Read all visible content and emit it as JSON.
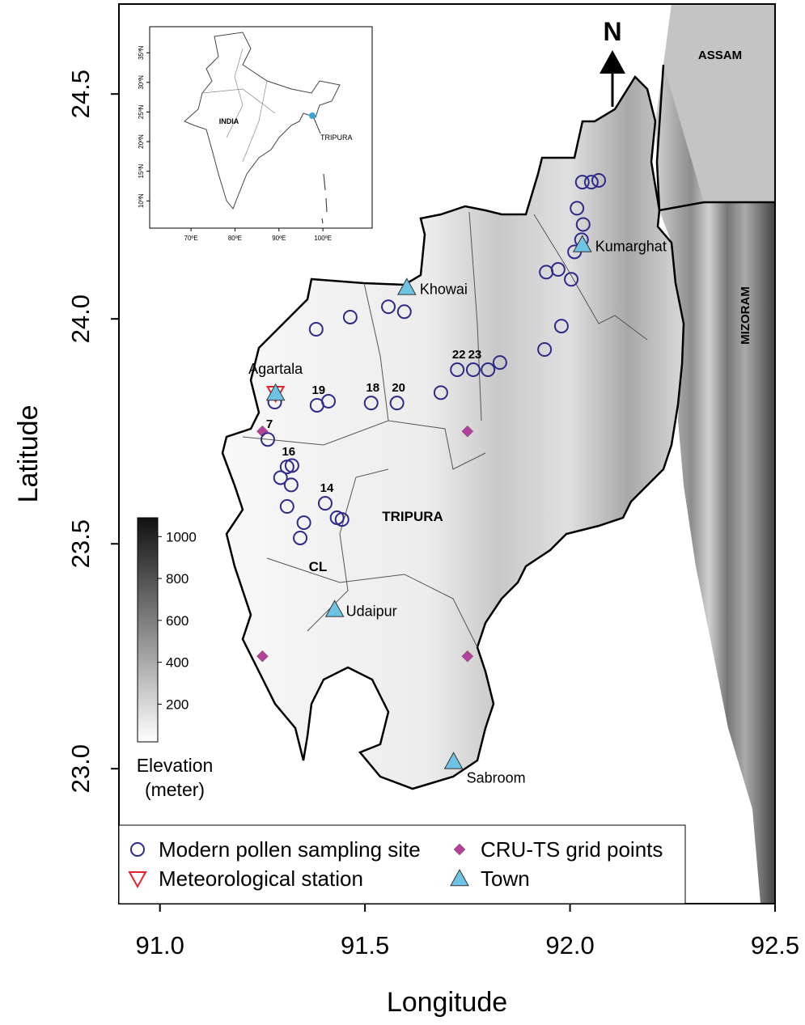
{
  "chart_data": {
    "type": "map",
    "x_label": "Longitude",
    "y_label": "Latitude",
    "xlim": [
      90.9,
      92.5
    ],
    "ylim": [
      22.7,
      24.7
    ],
    "xticks": [
      {
        "value": 91,
        "label": "91.0"
      },
      91.5,
      {
        "value": 92,
        "label": "92.0"
      },
      92.5
    ],
    "yticks": [
      {
        "value": 23,
        "label": "23.0"
      },
      23.5,
      {
        "value": 24,
        "label": "24.0"
      },
      24.5
    ],
    "north_label": "N",
    "regions": [
      "TRIPURA",
      "CL",
      "ASSAM",
      "MIZORAM"
    ],
    "series": [
      {
        "name": "Modern pollen sampling site",
        "marker": "circle",
        "color": "#2e2a8a",
        "points": [
          {
            "lon": 91.381,
            "lat": 23.977
          },
          {
            "lon": 91.464,
            "lat": 24.004
          },
          {
            "lon": 91.557,
            "lat": 24.027
          },
          {
            "lon": 91.596,
            "lat": 24.016
          },
          {
            "lon": 91.28,
            "lat": 23.815
          },
          {
            "lon": 91.383,
            "lat": 23.808,
            "label": "19"
          },
          {
            "lon": 91.411,
            "lat": 23.817
          },
          {
            "lon": 91.515,
            "lat": 23.813,
            "label": "18"
          },
          {
            "lon": 91.578,
            "lat": 23.813,
            "label": "20"
          },
          {
            "lon": 91.685,
            "lat": 23.836
          },
          {
            "lon": 91.725,
            "lat": 23.887,
            "label": "22"
          },
          {
            "lon": 91.764,
            "lat": 23.887,
            "label": "23"
          },
          {
            "lon": 91.8,
            "lat": 23.887
          },
          {
            "lon": 91.829,
            "lat": 23.903
          },
          {
            "lon": 91.938,
            "lat": 23.932
          },
          {
            "lon": 91.979,
            "lat": 23.984
          },
          {
            "lon": 91.263,
            "lat": 23.732,
            "label": "7"
          },
          {
            "lon": 91.31,
            "lat": 23.671,
            "label": "16"
          },
          {
            "lon": 91.322,
            "lat": 23.674
          },
          {
            "lon": 91.294,
            "lat": 23.647
          },
          {
            "lon": 91.32,
            "lat": 23.631
          },
          {
            "lon": 91.31,
            "lat": 23.583
          },
          {
            "lon": 91.403,
            "lat": 23.59,
            "label": "14"
          },
          {
            "lon": 91.351,
            "lat": 23.547
          },
          {
            "lon": 91.432,
            "lat": 23.558
          },
          {
            "lon": 91.444,
            "lat": 23.554
          },
          {
            "lon": 91.342,
            "lat": 23.513
          },
          {
            "lon": 91.942,
            "lat": 24.104
          },
          {
            "lon": 91.971,
            "lat": 24.11
          },
          {
            "lon": 92.003,
            "lat": 24.088
          },
          {
            "lon": 92.017,
            "lat": 24.246
          },
          {
            "lon": 92.032,
            "lat": 24.21
          },
          {
            "lon": 92.028,
            "lat": 24.176
          },
          {
            "lon": 92.011,
            "lat": 24.149
          },
          {
            "lon": 92.03,
            "lat": 24.304
          },
          {
            "lon": 92.052,
            "lat": 24.304
          },
          {
            "lon": 92.07,
            "lat": 24.308
          }
        ]
      },
      {
        "name": "Meteorological station",
        "marker": "triangle-down",
        "color": "#e8202a",
        "points": [
          {
            "lon": 91.282,
            "lat": 23.835
          }
        ]
      },
      {
        "name": "CRU-TS grid points",
        "marker": "diamond",
        "color": "#b5409a",
        "points": [
          {
            "lon": 91.25,
            "lat": 23.75
          },
          {
            "lon": 91.75,
            "lat": 23.75
          },
          {
            "lon": 91.25,
            "lat": 23.25
          },
          {
            "lon": 91.75,
            "lat": 23.25
          }
        ]
      },
      {
        "name": "Town",
        "marker": "triangle",
        "color": "#6ec3e4",
        "points": [
          {
            "lon": 91.282,
            "lat": 23.835,
            "label": "Agartala"
          },
          {
            "lon": 91.602,
            "lat": 24.07,
            "label": "Khowai"
          },
          {
            "lon": 92.03,
            "lat": 24.165,
            "label": "Kumarghat"
          },
          {
            "lon": 91.426,
            "lat": 23.354,
            "label": "Udaipur"
          },
          {
            "lon": 91.716,
            "lat": 23.016,
            "label": "Sabroom"
          }
        ]
      }
    ],
    "colorbar": {
      "title": [
        "Elevation",
        "(meter)"
      ],
      "lim": [
        20,
        1090
      ],
      "ticks": [
        200,
        400,
        600,
        800,
        1000
      ]
    },
    "inset": {
      "xlim": [
        60.6,
        111.2
      ],
      "ylim": [
        5.4,
        39.4
      ],
      "xticks": [
        {
          "value": 70,
          "label": "70ºE"
        },
        {
          "value": 80,
          "label": "80ºE"
        },
        {
          "value": 90,
          "label": "90ºE"
        },
        {
          "value": 100,
          "label": "100ºE"
        }
      ],
      "yticks": [
        {
          "value": 10,
          "label": "10ºN"
        },
        {
          "value": 15,
          "label": "15ºN"
        },
        {
          "value": 20,
          "label": "20ºN"
        },
        {
          "value": 25,
          "label": "25ºN"
        },
        {
          "value": 30,
          "label": "30ºN"
        },
        {
          "value": 35,
          "label": "35ºN"
        }
      ],
      "labels": [
        "INDIA",
        "TRIPURA"
      ]
    }
  }
}
